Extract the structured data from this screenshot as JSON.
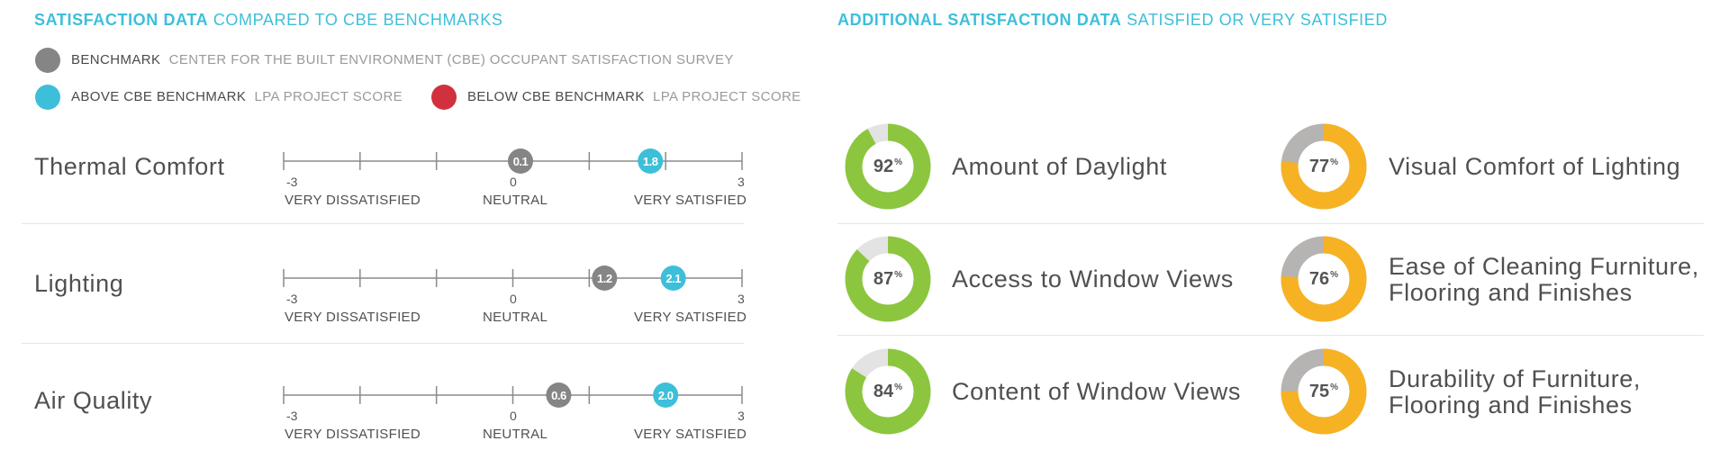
{
  "left": {
    "title_bold": "SATISFACTION DATA",
    "title_rest": "COMPARED TO CBE BENCHMARKS",
    "legend": {
      "benchmark_label": "BENCHMARK",
      "benchmark_desc": "CENTER FOR THE BUILT ENVIRONMENT (CBE) OCCUPANT SATISFACTION SURVEY",
      "above_label": "ABOVE CBE BENCHMARK",
      "above_desc": "LPA PROJECT  SCORE",
      "below_label": "BELOW CBE BENCHMARK",
      "below_desc": "LPA PROJECT  SCORE"
    },
    "axis": {
      "min_label": "-3",
      "mid_label": "0",
      "max_label": "3",
      "min_text": "VERY DISSATISFIED",
      "mid_text": "NEUTRAL",
      "max_text": "VERY SATISFIED"
    }
  },
  "right": {
    "title_bold": "ADDITIONAL SATISFACTION DATA",
    "title_rest": "SATISFIED OR VERY SATISFIED",
    "percent_sign": "%"
  },
  "colors": {
    "accent": "#3dbfd9",
    "benchmark": "#858585",
    "above": "#3dbfd9",
    "below": "#d1313c",
    "donut_green": "#8cc63f",
    "donut_orange": "#f6b223",
    "donut_track_light": "#e3e3e3",
    "donut_track_gray": "#b6b3b3"
  },
  "chart_data": [
    {
      "type": "scatter",
      "xlim": [
        -3,
        3
      ],
      "ticks": [
        -3,
        -2,
        -1,
        0,
        1,
        2,
        3
      ],
      "rows": [
        {
          "label": "Thermal Comfort",
          "benchmark": 0.1,
          "benchmark_text": "0.1",
          "score": 1.8,
          "score_text": "1.8"
        },
        {
          "label": "Lighting",
          "benchmark": 1.2,
          "benchmark_text": "1.2",
          "score": 2.1,
          "score_text": "2.1"
        },
        {
          "label": "Air Quality",
          "benchmark": 0.6,
          "benchmark_text": "0.6",
          "score": 2.0,
          "score_text": "2.0"
        }
      ]
    },
    {
      "type": "pie",
      "items": [
        {
          "label_lines": [
            "Amount of Daylight"
          ],
          "value": 92,
          "value_text": "92",
          "color": "green"
        },
        {
          "label_lines": [
            "Visual Comfort of Lighting"
          ],
          "value": 77,
          "value_text": "77",
          "color": "orange"
        },
        {
          "label_lines": [
            "Access to Window Views"
          ],
          "value": 87,
          "value_text": "87",
          "color": "green"
        },
        {
          "label_lines": [
            "Ease of Cleaning Furniture,",
            "Flooring and Finishes"
          ],
          "value": 76,
          "value_text": "76",
          "color": "orange"
        },
        {
          "label_lines": [
            "Content of Window Views"
          ],
          "value": 84,
          "value_text": "84",
          "color": "green"
        },
        {
          "label_lines": [
            "Durability of Furniture,",
            "Flooring and Finishes"
          ],
          "value": 75,
          "value_text": "75",
          "color": "orange"
        }
      ]
    }
  ]
}
